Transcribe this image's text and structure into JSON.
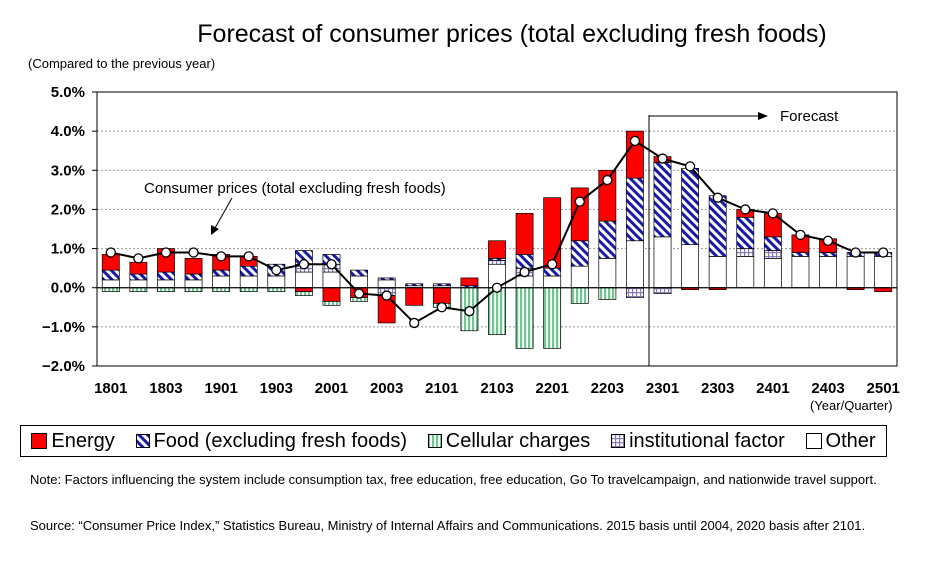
{
  "chart_title": "Forecast of consumer prices (total excluding fresh foods)",
  "unit_label": "(Compared to the previous year)",
  "annotations": {
    "forecast": "Forecast",
    "consumer_prices": "Consumer prices (total excluding fresh foods)"
  },
  "x_axis_caption": "(Year/Quarter)",
  "legend": [
    {
      "name": "Energy",
      "swatch": "energy"
    },
    {
      "name": "Food (excluding fresh foods)",
      "swatch": "food"
    },
    {
      "name": "Cellular charges",
      "swatch": "cellular"
    },
    {
      "name": "institutional factor",
      "swatch": "inst"
    },
    {
      "name": "Other",
      "swatch": "other"
    }
  ],
  "note": "Note: Factors influencing the system include consumption tax, free education, free education, Go To travelcampaign, and nationwide travel support.",
  "source": "Source: “Consumer Price Index,” Statistics Bureau, Ministry of Internal Affairs and Communications. 2015 basis until 2004, 2020 basis after 2101.",
  "colors": {
    "energy": "#ff0000",
    "food_stripe": "#1a1aa8",
    "cellular": "#7fcf9f",
    "inst": "#8a7bb8",
    "other": "#ffffff",
    "line": "#000000"
  },
  "chart_data": {
    "type": "bar",
    "stacked": true,
    "title": "Forecast of consumer prices (total excluding fresh foods)",
    "ylabel": "(Compared to the previous year)",
    "xlabel": "(Year/Quarter)",
    "ylim": [
      -2.0,
      5.0
    ],
    "yticks": [
      "5.0%",
      "4.0%",
      "3.0%",
      "2.0%",
      "1.0%",
      "0.0%",
      "−1.0%",
      "−2.0%"
    ],
    "grid": "horizontal dashed",
    "forecast_start": "2301",
    "categories": [
      "1801",
      "1802",
      "1803",
      "1804",
      "1901",
      "1902",
      "1903",
      "1904",
      "2001",
      "2002",
      "2003",
      "2004",
      "2101",
      "2102",
      "2103",
      "2104",
      "2201",
      "2202",
      "2203",
      "2204",
      "2301",
      "2302",
      "2303",
      "2304",
      "2401",
      "2402",
      "2403",
      "2404",
      "2501"
    ],
    "tick_labels": [
      "1801",
      "1803",
      "1901",
      "1903",
      "2001",
      "2003",
      "2101",
      "2103",
      "2201",
      "2203",
      "2301",
      "2303",
      "2401",
      "2403",
      "2501"
    ],
    "series": [
      {
        "name": "Other",
        "values": [
          0.2,
          0.2,
          0.2,
          0.2,
          0.3,
          0.3,
          0.3,
          0.4,
          0.4,
          0.3,
          0.2,
          0.05,
          0.05,
          0.0,
          0.6,
          0.3,
          0.3,
          0.55,
          0.75,
          1.2,
          1.3,
          1.1,
          0.8,
          0.8,
          0.75,
          0.8,
          0.8,
          0.8,
          0.8
        ]
      },
      {
        "name": "institutional factor",
        "values": [
          0,
          0,
          0,
          0,
          0,
          0,
          0,
          0.2,
          0.2,
          0,
          -0.2,
          0,
          0,
          0,
          0.1,
          0.2,
          0,
          0,
          0,
          -0.25,
          -0.15,
          0,
          0,
          0.2,
          0.2,
          0,
          0,
          0,
          0
        ]
      },
      {
        "name": "Food (excluding fresh foods)",
        "values": [
          0.25,
          0.15,
          0.2,
          0.15,
          0.15,
          0.25,
          0.3,
          0.35,
          0.25,
          0.15,
          0.05,
          0.05,
          0.05,
          0.05,
          0.05,
          0.35,
          0.2,
          0.65,
          0.95,
          1.6,
          1.9,
          1.95,
          1.55,
          0.8,
          0.35,
          0.1,
          0.1,
          0.1,
          0.1
        ]
      },
      {
        "name": "Energy",
        "values": [
          0.4,
          0.3,
          0.6,
          0.4,
          0.4,
          0.25,
          0,
          -0.1,
          -0.35,
          -0.25,
          -0.7,
          -0.45,
          -0.4,
          0.2,
          0.45,
          1.05,
          1.8,
          1.35,
          1.3,
          1.2,
          0.15,
          -0.05,
          -0.05,
          0.2,
          0.6,
          0.45,
          0.35,
          -0.05,
          -0.1
        ]
      },
      {
        "name": "Cellular charges",
        "values": [
          -0.1,
          -0.1,
          -0.1,
          -0.1,
          -0.1,
          -0.1,
          -0.1,
          -0.1,
          -0.1,
          -0.1,
          0,
          0,
          -0.1,
          -1.1,
          -1.2,
          -1.55,
          -1.55,
          -0.4,
          -0.3,
          0,
          0,
          0,
          0,
          0,
          0,
          0,
          0,
          0,
          0
        ]
      },
      {
        "name": "Consumer prices (total excluding fresh foods)",
        "type": "line",
        "values": [
          0.9,
          0.75,
          0.9,
          0.9,
          0.8,
          0.8,
          0.45,
          0.6,
          0.6,
          -0.15,
          -0.2,
          -0.9,
          -0.5,
          -0.6,
          0.0,
          0.4,
          0.6,
          2.2,
          2.75,
          3.75,
          3.3,
          3.1,
          2.3,
          2.0,
          1.9,
          1.35,
          1.2,
          0.9,
          0.9
        ]
      }
    ]
  }
}
